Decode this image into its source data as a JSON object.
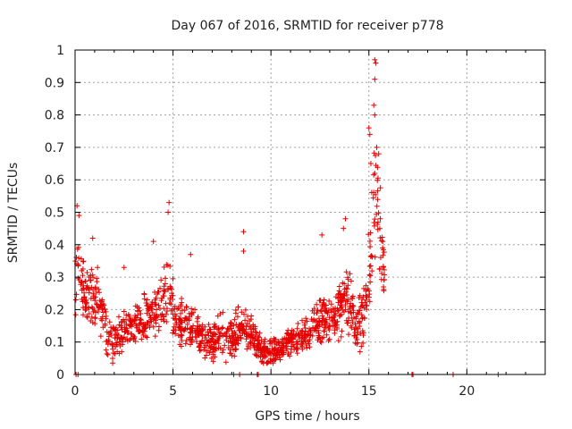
{
  "chart_data": {
    "type": "scatter",
    "title": "Day 067 of 2016, SRMTID for receiver p778",
    "xlabel": "GPS time / hours",
    "ylabel": "SRMTID / TECUs",
    "xlim": [
      0,
      24
    ],
    "ylim": [
      0,
      1
    ],
    "xticks": [
      "0",
      "5",
      "10",
      "15",
      "20"
    ],
    "xtick_values": [
      0,
      5,
      10,
      15,
      20
    ],
    "yticks": [
      "0",
      "0.1",
      "0.2",
      "0.3",
      "0.4",
      "0.5",
      "0.6",
      "0.7",
      "0.8",
      "0.9",
      "1"
    ],
    "ytick_values": [
      0,
      0.1,
      0.2,
      0.3,
      0.4,
      0.5,
      0.6,
      0.7,
      0.8,
      0.9,
      1
    ],
    "grid": true,
    "marker": "+",
    "color": "#e60000",
    "series": [
      {
        "name": "SRMTID",
        "profile_x": [
          0,
          0.1,
          0.3,
          0.6,
          1.0,
          1.3,
          1.6,
          2.0,
          2.5,
          3.0,
          3.5,
          4.0,
          4.5,
          4.8,
          5.1,
          5.5,
          6.0,
          6.5,
          7.0,
          7.5,
          8.0,
          8.5,
          9.0,
          9.5,
          10.0,
          10.5,
          11.0,
          11.5,
          12.0,
          12.5,
          13.0,
          13.5,
          14.0,
          14.3,
          14.6,
          14.9,
          15.1,
          15.3,
          15.5,
          15.7,
          15.8
        ],
        "profile_y": [
          0.26,
          0.36,
          0.3,
          0.24,
          0.25,
          0.22,
          0.14,
          0.11,
          0.13,
          0.16,
          0.17,
          0.19,
          0.23,
          0.27,
          0.18,
          0.15,
          0.14,
          0.12,
          0.1,
          0.12,
          0.11,
          0.14,
          0.13,
          0.07,
          0.06,
          0.08,
          0.1,
          0.11,
          0.13,
          0.17,
          0.19,
          0.21,
          0.22,
          0.15,
          0.17,
          0.24,
          0.4,
          0.55,
          0.5,
          0.35,
          0.27
        ],
        "spread": [
          0.12,
          0.14,
          0.1,
          0.09,
          0.09,
          0.08,
          0.07,
          0.06,
          0.06,
          0.07,
          0.07,
          0.07,
          0.09,
          0.12,
          0.07,
          0.07,
          0.06,
          0.05,
          0.05,
          0.06,
          0.06,
          0.06,
          0.06,
          0.04,
          0.04,
          0.04,
          0.05,
          0.05,
          0.06,
          0.08,
          0.08,
          0.08,
          0.09,
          0.07,
          0.08,
          0.12,
          0.2,
          0.22,
          0.18,
          0.1,
          0.07
        ],
        "n_points": 1300,
        "peaks": [
          {
            "x": 0.1,
            "y": 0.52
          },
          {
            "x": 0.2,
            "y": 0.49
          },
          {
            "x": 0.9,
            "y": 0.42
          },
          {
            "x": 2.5,
            "y": 0.33
          },
          {
            "x": 4.8,
            "y": 0.53
          },
          {
            "x": 4.75,
            "y": 0.5
          },
          {
            "x": 4.0,
            "y": 0.41
          },
          {
            "x": 5.9,
            "y": 0.37
          },
          {
            "x": 8.6,
            "y": 0.44
          },
          {
            "x": 8.6,
            "y": 0.38
          },
          {
            "x": 12.6,
            "y": 0.43
          },
          {
            "x": 13.8,
            "y": 0.48
          },
          {
            "x": 13.7,
            "y": 0.45
          },
          {
            "x": 15.0,
            "y": 0.76
          },
          {
            "x": 15.05,
            "y": 0.74
          },
          {
            "x": 15.3,
            "y": 0.97
          },
          {
            "x": 15.35,
            "y": 0.96
          },
          {
            "x": 15.3,
            "y": 0.91
          },
          {
            "x": 15.25,
            "y": 0.83
          },
          {
            "x": 15.3,
            "y": 0.8
          },
          {
            "x": 15.4,
            "y": 0.7
          },
          {
            "x": 15.5,
            "y": 0.68
          },
          {
            "x": 15.1,
            "y": 0.65
          },
          {
            "x": 15.3,
            "y": 0.62
          },
          {
            "x": 15.7,
            "y": 0.39
          }
        ],
        "zero_points": [
          {
            "x": 0.05,
            "y": 0
          },
          {
            "x": 0.15,
            "y": 0
          },
          {
            "x": 8.1,
            "y": 0
          },
          {
            "x": 8.4,
            "y": 0
          },
          {
            "x": 9.3,
            "y": 0
          },
          {
            "x": 9.35,
            "y": 0
          },
          {
            "x": 17.2,
            "y": 0
          },
          {
            "x": 17.25,
            "y": 0
          },
          {
            "x": 19.3,
            "y": 0
          },
          {
            "x": 21.6,
            "y": 0
          }
        ]
      }
    ]
  }
}
